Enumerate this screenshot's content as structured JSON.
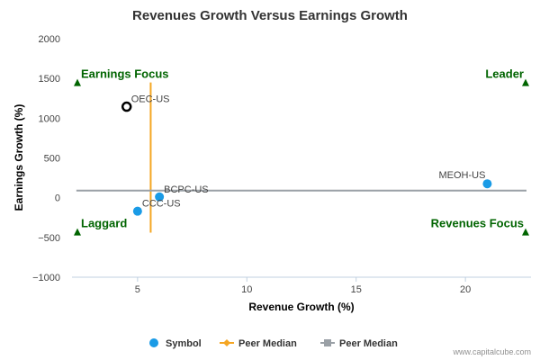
{
  "chart_data": {
    "type": "scatter",
    "title": "Revenues Growth Versus Earnings Growth",
    "xlabel": "Revenue Growth (%)",
    "ylabel": "Earnings Growth (%)",
    "xlim": [
      2,
      23
    ],
    "ylim": [
      -1000,
      2000
    ],
    "x_ticks": [
      5,
      10,
      15,
      20
    ],
    "y_ticks": [
      -1000,
      -500,
      0,
      500,
      1000,
      1500,
      2000
    ],
    "x_tick_labels": [
      "5",
      "10",
      "15",
      "20"
    ],
    "y_tick_labels": [
      "−1000",
      "−500",
      "0",
      "500",
      "1000",
      "1500",
      "2000"
    ],
    "grid": false,
    "points": [
      {
        "label": "OEC-US",
        "x": 4.5,
        "y": 1145,
        "highlight": true
      },
      {
        "label": "BCPC-US",
        "x": 6.0,
        "y": 10,
        "highlight": false
      },
      {
        "label": "CCC-US",
        "x": 5.0,
        "y": -170,
        "highlight": false
      },
      {
        "label": "MEOH-US",
        "x": 21.0,
        "y": 175,
        "highlight": false
      }
    ],
    "peer_median_revenue_growth": 5.6,
    "peer_median_earnings_growth": 90,
    "quadrant_labels": {
      "top_left": "Earnings Focus",
      "top_right": "Leader",
      "bottom_left": "Laggard",
      "bottom_right": "Revenues Focus"
    },
    "legend": [
      {
        "label": "Symbol",
        "marker": "circle",
        "color": "#1a9be6"
      },
      {
        "label": "Peer Median",
        "marker": "diamond",
        "color": "#f5a623"
      },
      {
        "label": "Peer Median",
        "marker": "square",
        "color": "#9aa0a6"
      }
    ],
    "legend_placement": "bottom",
    "colors": {
      "symbol": "#1a9be6",
      "highlight_fill": "#ffffff",
      "highlight_stroke": "#000000",
      "vertical_median": "#f5a623",
      "horizontal_median": "#9aa0a6",
      "quadrant": "#006400",
      "axis": "#c0d0e0"
    },
    "credit": "www.capitalcube.com"
  }
}
